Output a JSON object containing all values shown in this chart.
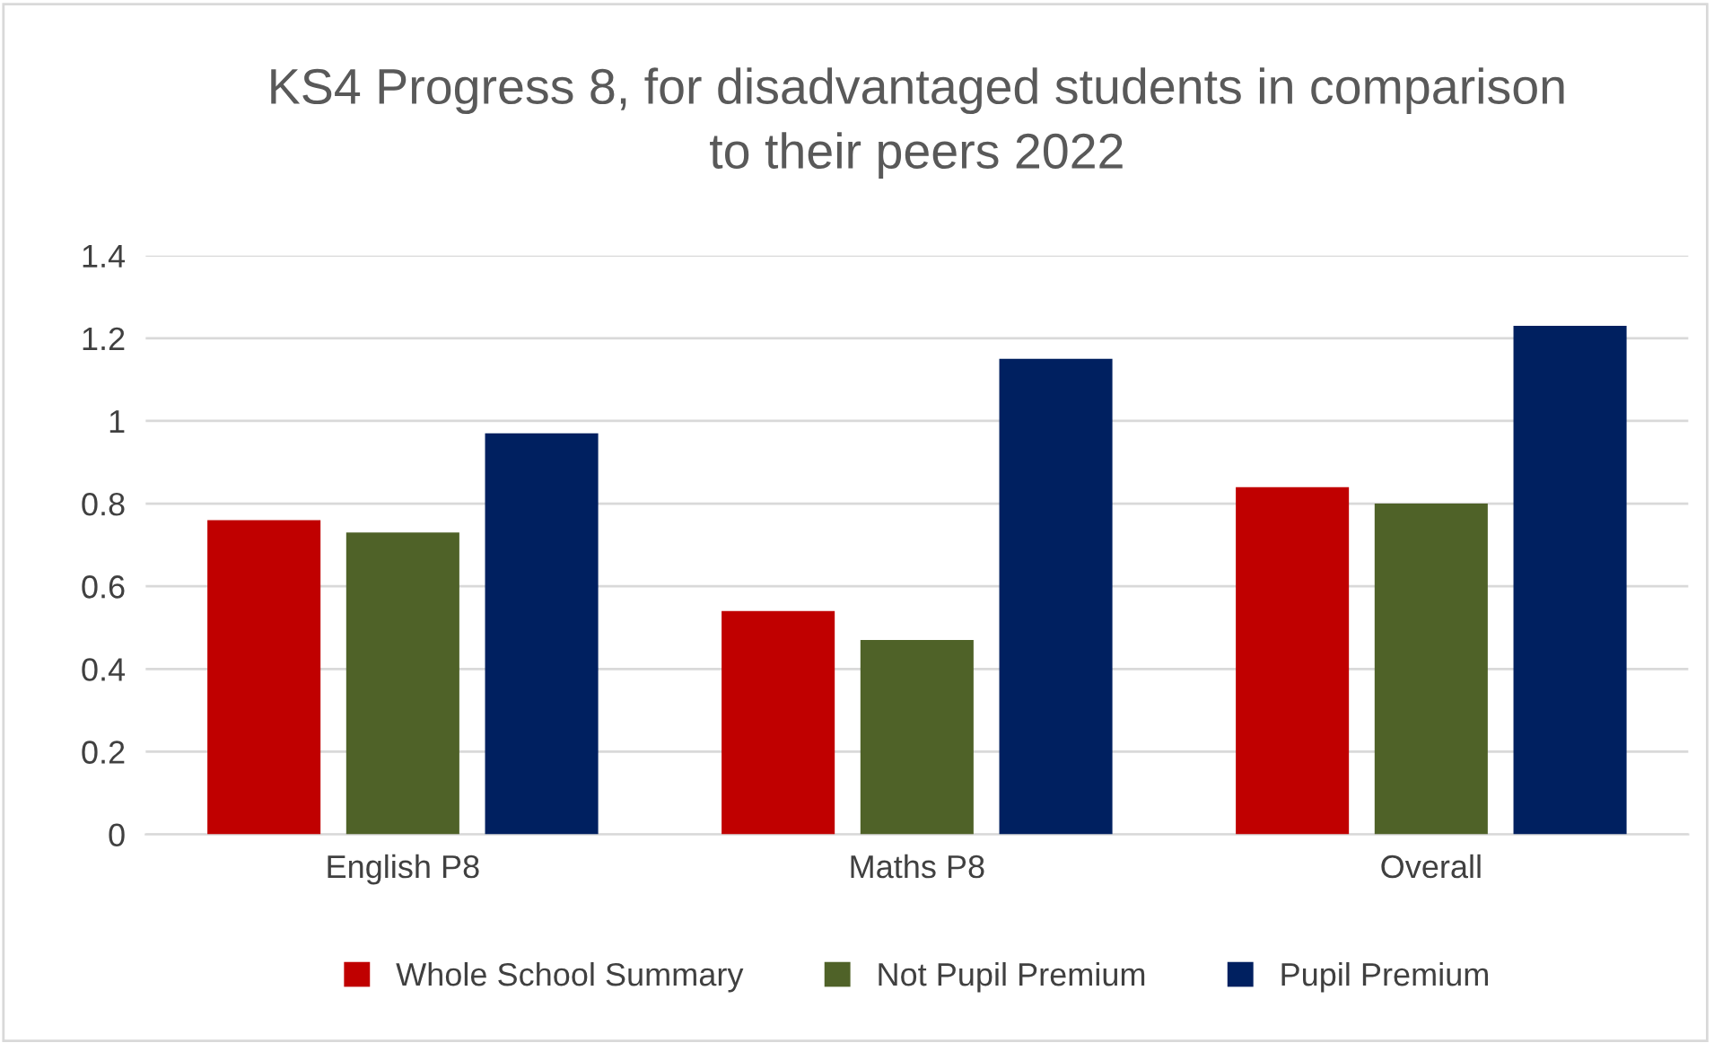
{
  "chart_data": {
    "type": "bar",
    "title": "KS4 Progress 8, for disadvantaged students in comparison\nto their peers 2022",
    "categories": [
      "English P8",
      "Maths P8",
      "Overall"
    ],
    "series": [
      {
        "name": "Whole School Summary",
        "color": "#c00000",
        "values": [
          0.76,
          0.54,
          0.84
        ]
      },
      {
        "name": "Not Pupil Premium",
        "color": "#4f6228",
        "values": [
          0.73,
          0.47,
          0.8
        ]
      },
      {
        "name": "Pupil Premium",
        "color": "#002060",
        "values": [
          0.97,
          1.15,
          1.23
        ]
      }
    ],
    "ylim": [
      0,
      1.4
    ],
    "yticks": [
      0,
      0.2,
      0.4,
      0.6,
      0.8,
      1,
      1.2,
      1.4
    ],
    "grid": "y",
    "legend": "bottom"
  }
}
